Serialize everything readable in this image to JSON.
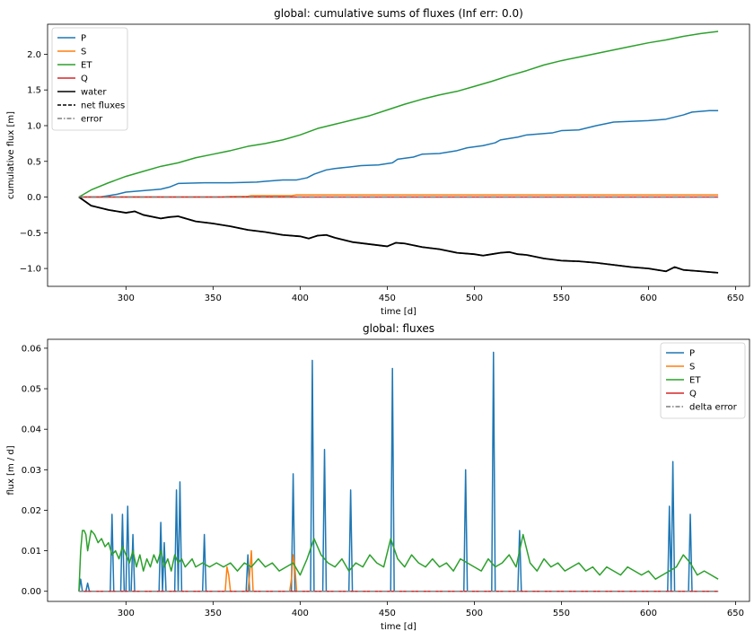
{
  "chart_data": [
    {
      "type": "line",
      "title": "global: cumulative sums of fluxes (Inf err: 0.0)",
      "xlabel": "time [d]",
      "ylabel": "cumulative flux [m]",
      "xlim": [
        255,
        658
      ],
      "ylim": [
        -1.25,
        2.42
      ],
      "xticks": [
        300,
        350,
        400,
        450,
        500,
        550,
        600,
        650
      ],
      "yticks": [
        -1.0,
        -0.5,
        0.0,
        0.5,
        1.0,
        1.5,
        2.0
      ],
      "ytick_labels": [
        "−1.0",
        "−0.5",
        "0.0",
        "0.5",
        "1.0",
        "1.5",
        "2.0"
      ],
      "legend_position": "upper-left",
      "series": [
        {
          "name": "P",
          "color": "#1f77b4",
          "dash": "solid",
          "x": [
            273,
            285,
            290,
            295,
            300,
            310,
            320,
            325,
            330,
            345,
            360,
            375,
            380,
            390,
            398,
            404,
            408,
            415,
            420,
            428,
            435,
            445,
            453,
            456,
            465,
            470,
            480,
            490,
            496,
            505,
            512,
            515,
            525,
            530,
            545,
            550,
            560,
            570,
            580,
            600,
            610,
            615,
            620,
            625,
            635,
            640
          ],
          "y": [
            0.0,
            0.0,
            0.02,
            0.04,
            0.07,
            0.09,
            0.11,
            0.14,
            0.19,
            0.2,
            0.2,
            0.21,
            0.22,
            0.24,
            0.24,
            0.27,
            0.32,
            0.38,
            0.4,
            0.42,
            0.44,
            0.45,
            0.48,
            0.53,
            0.56,
            0.6,
            0.61,
            0.65,
            0.69,
            0.72,
            0.76,
            0.8,
            0.84,
            0.87,
            0.9,
            0.93,
            0.94,
            1.0,
            1.05,
            1.07,
            1.09,
            1.12,
            1.15,
            1.19,
            1.21,
            1.21
          ]
        },
        {
          "name": "S",
          "color": "#ff7f0e",
          "dash": "solid",
          "x": [
            273,
            355,
            358,
            370,
            372,
            395,
            398,
            640
          ],
          "y": [
            0.0,
            0.0,
            0.007,
            0.01,
            0.02,
            0.02,
            0.03,
            0.03
          ]
        },
        {
          "name": "ET",
          "color": "#2ca02c",
          "dash": "solid",
          "x": [
            273,
            280,
            290,
            300,
            310,
            320,
            330,
            340,
            350,
            360,
            370,
            380,
            390,
            400,
            410,
            420,
            430,
            440,
            450,
            460,
            470,
            480,
            490,
            500,
            510,
            520,
            530,
            540,
            550,
            560,
            570,
            580,
            590,
            600,
            610,
            620,
            630,
            640
          ],
          "y": [
            0.0,
            0.1,
            0.2,
            0.29,
            0.36,
            0.43,
            0.48,
            0.55,
            0.6,
            0.65,
            0.71,
            0.75,
            0.8,
            0.87,
            0.96,
            1.02,
            1.08,
            1.14,
            1.22,
            1.3,
            1.37,
            1.43,
            1.48,
            1.55,
            1.62,
            1.7,
            1.77,
            1.85,
            1.91,
            1.96,
            2.01,
            2.06,
            2.11,
            2.16,
            2.2,
            2.25,
            2.29,
            2.32
          ]
        },
        {
          "name": "Q",
          "color": "#d62728",
          "dash": "solid",
          "x": [
            273,
            640
          ],
          "y": [
            0.0,
            0.0
          ]
        },
        {
          "name": "water",
          "color": "#000000",
          "dash": "solid",
          "x": [
            273,
            280,
            290,
            300,
            305,
            310,
            320,
            325,
            330,
            340,
            350,
            360,
            370,
            380,
            390,
            400,
            405,
            410,
            415,
            420,
            430,
            440,
            450,
            455,
            460,
            470,
            480,
            490,
            500,
            505,
            510,
            515,
            520,
            525,
            530,
            540,
            550,
            560,
            570,
            580,
            590,
            600,
            610,
            615,
            620,
            630,
            640
          ],
          "y": [
            0.0,
            -0.12,
            -0.18,
            -0.22,
            -0.2,
            -0.25,
            -0.3,
            -0.28,
            -0.27,
            -0.34,
            -0.37,
            -0.41,
            -0.46,
            -0.49,
            -0.53,
            -0.55,
            -0.58,
            -0.54,
            -0.53,
            -0.57,
            -0.63,
            -0.66,
            -0.69,
            -0.64,
            -0.65,
            -0.7,
            -0.73,
            -0.78,
            -0.8,
            -0.82,
            -0.8,
            -0.78,
            -0.77,
            -0.8,
            -0.81,
            -0.86,
            -0.89,
            -0.9,
            -0.92,
            -0.95,
            -0.98,
            -1.0,
            -1.04,
            -0.98,
            -1.02,
            -1.04,
            -1.06
          ]
        },
        {
          "name": "net fluxes",
          "color": "#000000",
          "dash": "dashed",
          "x": [
            273,
            280,
            290,
            300,
            305,
            310,
            320,
            325,
            330,
            340,
            350,
            360,
            370,
            380,
            390,
            400,
            405,
            410,
            415,
            420,
            430,
            440,
            450,
            455,
            460,
            470,
            480,
            490,
            500,
            505,
            510,
            515,
            520,
            525,
            530,
            540,
            550,
            560,
            570,
            580,
            590,
            600,
            610,
            615,
            620,
            630,
            640
          ],
          "y": [
            0.0,
            -0.12,
            -0.18,
            -0.22,
            -0.2,
            -0.25,
            -0.3,
            -0.28,
            -0.27,
            -0.34,
            -0.37,
            -0.41,
            -0.46,
            -0.49,
            -0.53,
            -0.55,
            -0.58,
            -0.54,
            -0.53,
            -0.57,
            -0.63,
            -0.66,
            -0.69,
            -0.64,
            -0.65,
            -0.7,
            -0.73,
            -0.78,
            -0.8,
            -0.82,
            -0.8,
            -0.78,
            -0.77,
            -0.8,
            -0.81,
            -0.86,
            -0.89,
            -0.9,
            -0.92,
            -0.95,
            -0.98,
            -1.0,
            -1.04,
            -0.98,
            -1.02,
            -1.04,
            -1.06
          ]
        },
        {
          "name": "error",
          "color": "#7f7f7f",
          "dash": "dashdot",
          "x": [
            273,
            640
          ],
          "y": [
            0.0,
            0.0
          ]
        }
      ]
    },
    {
      "type": "line",
      "title": "global: fluxes",
      "xlabel": "time [d]",
      "ylabel": "flux [m / d]",
      "xlim": [
        255,
        658
      ],
      "ylim": [
        -0.0025,
        0.0622
      ],
      "xticks": [
        300,
        350,
        400,
        450,
        500,
        550,
        600,
        650
      ],
      "yticks": [
        0.0,
        0.01,
        0.02,
        0.03,
        0.04,
        0.05,
        0.06
      ],
      "ytick_labels": [
        "0.00",
        "0.01",
        "0.02",
        "0.03",
        "0.04",
        "0.05",
        "0.06"
      ],
      "legend_position": "upper-right",
      "series": [
        {
          "name": "P",
          "color": "#1f77b4",
          "dash": "solid",
          "x": [
            273,
            274,
            275,
            276,
            277,
            278,
            279,
            291,
            292,
            293,
            294,
            297,
            298,
            299,
            300,
            301,
            302,
            303,
            304,
            305,
            319,
            320,
            321,
            322,
            323,
            328,
            329,
            330,
            331,
            332,
            333,
            344,
            345,
            346,
            369,
            370,
            371,
            372,
            373,
            395,
            396,
            397,
            398,
            399,
            406,
            407,
            408,
            409,
            413,
            414,
            415,
            416,
            428,
            429,
            430,
            452,
            453,
            454,
            455,
            456,
            494,
            495,
            496,
            497,
            510,
            511,
            512,
            513,
            525,
            526,
            527,
            528,
            611,
            612,
            613,
            614,
            615,
            623,
            624,
            625,
            640
          ],
          "y": [
            0.0,
            0.003,
            0.0,
            0.0,
            0.0,
            0.002,
            0.0,
            0.0,
            0.019,
            0.0,
            0.0,
            0.0,
            0.019,
            0.0,
            0.0,
            0.021,
            0.0,
            0.0,
            0.014,
            0.0,
            0.0,
            0.017,
            0.0,
            0.012,
            0.0,
            0.0,
            0.025,
            0.0,
            0.027,
            0.0,
            0.0,
            0.0,
            0.014,
            0.0,
            0.0,
            0.009,
            0.0,
            0.0,
            0.0,
            0.0,
            0.029,
            0.0,
            0.0,
            0.0,
            0.0,
            0.057,
            0.0,
            0.0,
            0.0,
            0.035,
            0.0,
            0.0,
            0.0,
            0.025,
            0.0,
            0.0,
            0.055,
            0.0,
            0.0,
            0.0,
            0.0,
            0.03,
            0.0,
            0.0,
            0.0,
            0.059,
            0.0,
            0.0,
            0.0,
            0.015,
            0.0,
            0.0,
            0.0,
            0.021,
            0.0,
            0.032,
            0.0,
            0.0,
            0.019,
            0.0,
            0.0
          ]
        },
        {
          "name": "S",
          "color": "#ff7f0e",
          "dash": "solid",
          "x": [
            273,
            357,
            358,
            359,
            360,
            370,
            371,
            372,
            373,
            394,
            395,
            396,
            397,
            398,
            640
          ],
          "y": [
            0.0,
            0.0,
            0.006,
            0.004,
            0.0,
            0.0,
            0.004,
            0.01,
            0.0,
            0.0,
            0.003,
            0.009,
            0.006,
            0.0,
            0.0
          ]
        },
        {
          "name": "ET",
          "color": "#2ca02c",
          "dash": "solid",
          "x": [
            273,
            274,
            275,
            276,
            277,
            278,
            280,
            282,
            284,
            286,
            288,
            290,
            292,
            294,
            296,
            298,
            300,
            302,
            304,
            306,
            308,
            310,
            312,
            314,
            316,
            318,
            320,
            322,
            324,
            326,
            328,
            330,
            332,
            334,
            336,
            338,
            340,
            344,
            348,
            352,
            356,
            360,
            364,
            368,
            372,
            376,
            380,
            384,
            388,
            392,
            396,
            400,
            404,
            408,
            412,
            416,
            420,
            424,
            428,
            432,
            436,
            440,
            444,
            448,
            452,
            456,
            460,
            464,
            468,
            472,
            476,
            480,
            484,
            488,
            492,
            496,
            500,
            504,
            508,
            512,
            516,
            520,
            524,
            528,
            532,
            536,
            540,
            544,
            548,
            552,
            556,
            560,
            564,
            568,
            572,
            576,
            580,
            584,
            588,
            592,
            596,
            600,
            604,
            608,
            612,
            616,
            620,
            624,
            628,
            632,
            636,
            640
          ],
          "y": [
            0.0,
            0.01,
            0.015,
            0.015,
            0.014,
            0.01,
            0.015,
            0.014,
            0.012,
            0.013,
            0.011,
            0.012,
            0.009,
            0.01,
            0.008,
            0.011,
            0.009,
            0.007,
            0.01,
            0.006,
            0.009,
            0.005,
            0.008,
            0.006,
            0.009,
            0.007,
            0.01,
            0.006,
            0.008,
            0.005,
            0.009,
            0.007,
            0.008,
            0.006,
            0.007,
            0.008,
            0.006,
            0.007,
            0.006,
            0.007,
            0.006,
            0.007,
            0.005,
            0.007,
            0.006,
            0.008,
            0.006,
            0.007,
            0.005,
            0.006,
            0.007,
            0.004,
            0.008,
            0.013,
            0.009,
            0.007,
            0.006,
            0.008,
            0.005,
            0.007,
            0.006,
            0.009,
            0.007,
            0.006,
            0.013,
            0.008,
            0.006,
            0.009,
            0.007,
            0.006,
            0.008,
            0.006,
            0.007,
            0.005,
            0.008,
            0.007,
            0.006,
            0.005,
            0.008,
            0.006,
            0.007,
            0.009,
            0.006,
            0.014,
            0.007,
            0.005,
            0.008,
            0.006,
            0.007,
            0.005,
            0.006,
            0.007,
            0.005,
            0.006,
            0.004,
            0.006,
            0.005,
            0.004,
            0.006,
            0.005,
            0.004,
            0.005,
            0.003,
            0.004,
            0.005,
            0.006,
            0.009,
            0.007,
            0.004,
            0.005,
            0.004,
            0.003
          ]
        },
        {
          "name": "Q",
          "color": "#d62728",
          "dash": "solid",
          "x": [
            273,
            640
          ],
          "y": [
            0.0,
            0.0
          ]
        },
        {
          "name": "delta error",
          "color": "#7f7f7f",
          "dash": "dashdot",
          "x": [
            273,
            640
          ],
          "y": [
            0.0,
            0.0
          ]
        }
      ]
    }
  ]
}
